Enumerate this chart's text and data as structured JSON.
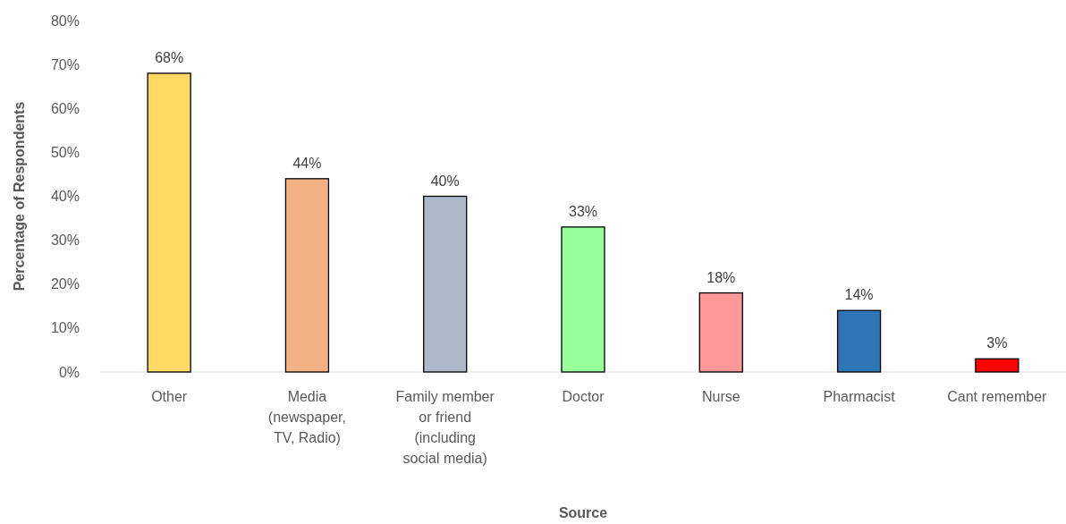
{
  "chart_data": {
    "type": "bar",
    "xlabel": "Source",
    "ylabel": "Percentage of Respondents",
    "categories": [
      "Other",
      "Media (newspaper, TV, Radio)",
      "Family member or friend (including social media)",
      "Doctor",
      "Nurse",
      "Pharmacist",
      "Cant remember"
    ],
    "values": [
      68,
      44,
      40,
      33,
      18,
      14,
      3
    ],
    "colors": [
      "#ffd966",
      "#f4b183",
      "#adb9ca",
      "#99ff99",
      "#ff9999",
      "#2e75b6",
      "#ff0000"
    ],
    "value_labels": [
      "68%",
      "44%",
      "40%",
      "33%",
      "18%",
      "14%",
      "3%"
    ],
    "ylim": [
      0,
      80
    ],
    "yticks": [
      {
        "value": 0,
        "label": "0%"
      },
      {
        "value": 10,
        "label": "10%"
      },
      {
        "value": 20,
        "label": "20%"
      },
      {
        "value": 30,
        "label": "30%"
      },
      {
        "value": 40,
        "label": "40%"
      },
      {
        "value": 50,
        "label": "50%"
      },
      {
        "value": 60,
        "label": "60%"
      },
      {
        "value": 70,
        "label": "70%"
      },
      {
        "value": 80,
        "label": "80%"
      }
    ],
    "grid": false
  }
}
